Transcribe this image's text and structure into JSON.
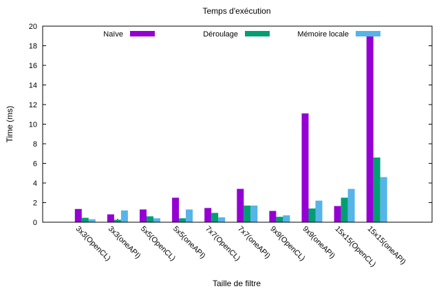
{
  "chart_data": {
    "type": "bar",
    "title": "Temps d'exécution",
    "xlabel": "Taille de filtre",
    "ylabel": "Time (ms)",
    "ylim": [
      0,
      20
    ],
    "yticks": [
      0,
      2,
      4,
      6,
      8,
      10,
      12,
      14,
      16,
      18,
      20
    ],
    "grid": false,
    "legend_position": "top",
    "categories": [
      "3x3(OpenCL)",
      "3x3(oneAPI)",
      "5x5(OpenCL)",
      "5x5(oneAPI)",
      "7x7(OpenCL)",
      "7x7(oneAPI)",
      "9x9(OpenCL)",
      "9x9(oneAPI)",
      "15x15(OpenCL)",
      "15x15(oneAPI)"
    ],
    "series": [
      {
        "name": "Naïve",
        "color": "#9400d3",
        "values": [
          1.35,
          0.8,
          1.3,
          2.5,
          1.45,
          3.4,
          1.15,
          11.1,
          1.65,
          19.0
        ]
      },
      {
        "name": "Déroulage",
        "color": "#009e73",
        "values": [
          0.45,
          0.25,
          0.6,
          0.4,
          0.95,
          1.7,
          0.55,
          1.4,
          2.5,
          6.6
        ]
      },
      {
        "name": "Mémoire locale",
        "color": "#56b4e9",
        "values": [
          0.3,
          1.2,
          0.4,
          1.3,
          0.5,
          1.7,
          0.7,
          2.2,
          3.4,
          4.6
        ]
      }
    ]
  }
}
